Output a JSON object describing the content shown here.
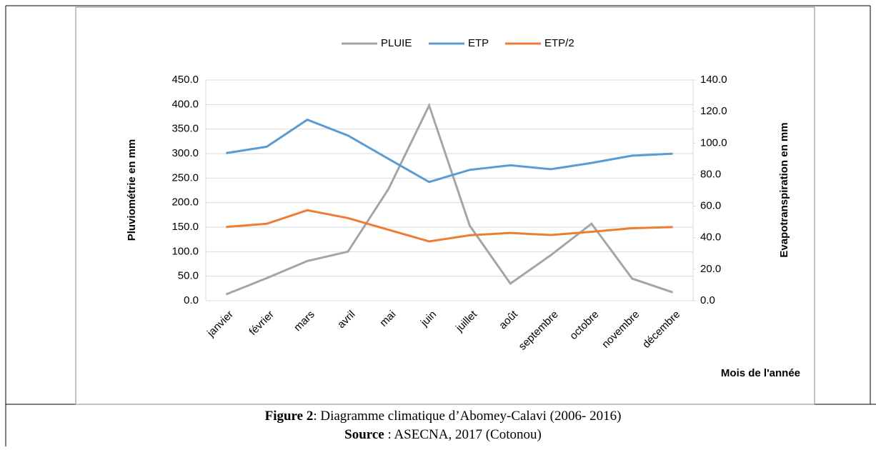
{
  "chart_data": {
    "type": "line",
    "categories": [
      "janvier",
      "février",
      "mars",
      "avril",
      "mai",
      "juin",
      "juillet",
      "août",
      "septembre",
      "octobre",
      "novembre",
      "décembre"
    ],
    "series": [
      {
        "name": "PLUIE",
        "color": "#a5a5a5",
        "values": [
          13,
          46,
          81,
          100,
          228,
          398,
          153,
          35,
          93,
          157,
          45,
          17
        ]
      },
      {
        "name": "ETP",
        "color": "#5b9bd5",
        "axis": "y2",
        "values": [
          93.6,
          97.7,
          114.8,
          104.8,
          90,
          75.3,
          83,
          85.9,
          83.4,
          87.4,
          92,
          93.3
        ]
      },
      {
        "name": "ETP/2",
        "color": "#ed7d31",
        "axis": "y2",
        "values": [
          46.8,
          48.8,
          57.4,
          52.4,
          45,
          37.6,
          41.5,
          43,
          41.7,
          43.7,
          46,
          46.7
        ]
      }
    ],
    "ylabel": "Pluviométrie  en mm",
    "y2label": "Evapotranspiration en mm",
    "xlabel": "Mois de l'année",
    "ylim": [
      0,
      450
    ],
    "yticks": [
      {
        "value": 0,
        "label": "0.0"
      },
      {
        "value": 50,
        "label": "50.0"
      },
      {
        "value": 100,
        "label": "100.0"
      },
      {
        "value": 150,
        "label": "150.0"
      },
      {
        "value": 200,
        "label": "200.0"
      },
      {
        "value": 250,
        "label": "250.0"
      },
      {
        "value": 300,
        "label": "300.0"
      },
      {
        "value": 350,
        "label": "350.0"
      },
      {
        "value": 400,
        "label": "400.0"
      },
      {
        "value": 450,
        "label": "450.0"
      }
    ],
    "y2lim": [
      0,
      140
    ],
    "y2ticks": [
      {
        "value": 0,
        "label": "0.0"
      },
      {
        "value": 20,
        "label": "20.0"
      },
      {
        "value": 40,
        "label": "40.0"
      },
      {
        "value": 60,
        "label": "60.0"
      },
      {
        "value": 80,
        "label": "80.0"
      },
      {
        "value": 100,
        "label": "100.0"
      },
      {
        "value": 120,
        "label": "120.0"
      },
      {
        "value": 140,
        "label": "140.0"
      }
    ],
    "grid": true,
    "legend": "top"
  },
  "caption": {
    "label": "Figure 2",
    "text": ": Diagramme climatique d’Abomey-Calavi (2006- 2016)",
    "source_label": "Source",
    "source_text": " : ASECNA, 2017 (Cotonou)"
  }
}
